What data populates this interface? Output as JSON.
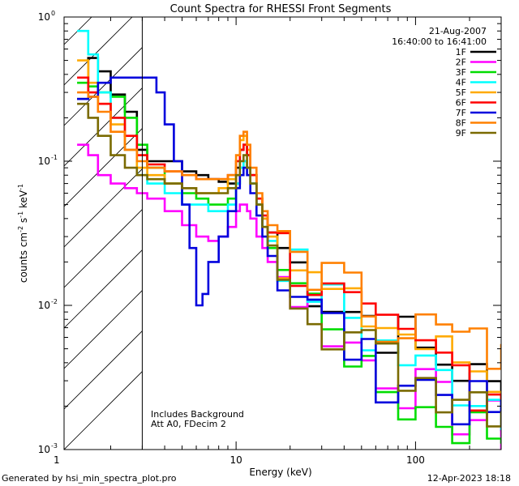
{
  "chart_data": {
    "type": "line",
    "title": "Count Spectra for RHESSI Front Segments",
    "xlabel": "Energy (keV)",
    "ylabel_parts": [
      "counts cm",
      "-2",
      " s",
      "-1",
      " keV",
      "-1"
    ],
    "xscale": "log",
    "yscale": "log",
    "xlim": [
      1.1,
      300
    ],
    "ylim": [
      0.001,
      1
    ],
    "x_ticks": [
      {
        "value": 1,
        "label": "1"
      },
      {
        "value": 10,
        "label": "10"
      },
      {
        "value": 100,
        "label": "100"
      }
    ],
    "y_ticks": [
      {
        "value": 1,
        "base": "10",
        "exp": "0"
      },
      {
        "value": 0.1,
        "base": "10",
        "exp": "-1"
      },
      {
        "value": 0.01,
        "base": "10",
        "exp": "-2"
      },
      {
        "value": 0.001,
        "base": "10",
        "exp": "-3"
      }
    ],
    "annotations": {
      "date": "21-Aug-2007",
      "time_range": "16:40:00 to 16:41:00",
      "note_line1": "Includes Background",
      "note_line2": "Att A0, FDecim 2"
    },
    "shaded_region": {
      "x_min": 1.1,
      "x_max": 3.0,
      "style": "diagonal hatch"
    },
    "series": [
      {
        "name": "1F",
        "color": "#000000",
        "x": [
          1.3,
          1.5,
          1.7,
          2.0,
          2.4,
          2.8,
          3.2,
          4,
          5,
          6,
          7,
          8,
          9,
          10,
          10.5,
          11,
          11.5,
          12,
          13,
          14,
          15,
          17,
          20,
          25,
          30,
          40,
          50,
          60,
          80,
          100,
          130,
          160,
          200,
          250,
          300
        ],
        "y": [
          0.27,
          0.52,
          0.42,
          0.29,
          0.22,
          0.12,
          0.1,
          0.1,
          0.085,
          0.08,
          0.075,
          0.072,
          0.07,
          0.09,
          0.12,
          0.13,
          0.11,
          0.08,
          0.05,
          0.04,
          0.032,
          0.024,
          0.018,
          0.014,
          0.011,
          0.009,
          0.008,
          0.007,
          0.006,
          0.0045,
          0.004,
          0.0035,
          0.003,
          0.0025,
          0.002
        ]
      },
      {
        "name": "2F",
        "color": "#ff00ff",
        "x": [
          1.3,
          1.5,
          1.7,
          2.0,
          2.4,
          2.8,
          3.2,
          4,
          5,
          6,
          7,
          8,
          9,
          10,
          10.5,
          11,
          11.5,
          12,
          13,
          14,
          15,
          17,
          20,
          25,
          30,
          40,
          50,
          60,
          80,
          100,
          130,
          160,
          200,
          250,
          300
        ],
        "y": [
          0.13,
          0.11,
          0.08,
          0.07,
          0.065,
          0.06,
          0.055,
          0.045,
          0.036,
          0.03,
          0.028,
          0.03,
          0.035,
          0.045,
          0.05,
          0.05,
          0.045,
          0.04,
          0.03,
          0.025,
          0.02,
          0.015,
          0.012,
          0.009,
          0.007,
          0.005,
          0.004,
          0.0035,
          0.003,
          0.0025,
          0.002,
          0.0018,
          0.0016,
          0.0015,
          0.0013
        ]
      },
      {
        "name": "3F",
        "color": "#00dd00",
        "x": [
          1.3,
          1.5,
          1.7,
          2.0,
          2.4,
          2.8,
          3.2,
          4,
          5,
          6,
          7,
          8,
          9,
          10,
          10.5,
          11,
          11.5,
          12,
          13,
          14,
          15,
          17,
          20,
          25,
          30,
          40,
          50,
          60,
          80,
          100,
          130,
          160,
          200,
          250,
          300
        ],
        "y": [
          0.35,
          0.33,
          0.3,
          0.28,
          0.2,
          0.13,
          0.09,
          0.07,
          0.06,
          0.055,
          0.05,
          0.05,
          0.055,
          0.07,
          0.09,
          0.1,
          0.09,
          0.07,
          0.05,
          0.035,
          0.025,
          0.018,
          0.013,
          0.01,
          0.008,
          0.005,
          0.003,
          0.0025,
          0.002,
          0.0018,
          0.0016,
          0.0015,
          0.0014,
          0.0013,
          0.0012
        ]
      },
      {
        "name": "4F",
        "color": "#00ffff",
        "x": [
          1.3,
          1.5,
          1.7,
          2.0,
          2.4,
          2.8,
          3.2,
          4,
          5,
          6,
          7,
          8,
          9,
          10,
          10.5,
          11,
          11.5,
          12,
          13,
          14,
          15,
          17,
          20,
          25,
          30,
          40,
          50,
          60,
          80,
          100,
          130,
          160,
          200,
          250,
          300
        ],
        "y": [
          0.8,
          0.55,
          0.3,
          0.2,
          0.12,
          0.08,
          0.07,
          0.06,
          0.05,
          0.05,
          0.045,
          0.045,
          0.05,
          0.07,
          0.09,
          0.1,
          0.09,
          0.07,
          0.05,
          0.035,
          0.028,
          0.022,
          0.017,
          0.013,
          0.01,
          0.008,
          0.006,
          0.005,
          0.004,
          0.0035,
          0.003,
          0.0028,
          0.0025,
          0.0022,
          0.002
        ]
      },
      {
        "name": "5F",
        "color": "#ffaa00",
        "x": [
          1.3,
          1.5,
          1.7,
          2.0,
          2.4,
          2.8,
          3.2,
          4,
          5,
          6,
          7,
          8,
          9,
          10,
          10.5,
          11,
          11.5,
          12,
          13,
          14,
          15,
          17,
          20,
          25,
          30,
          40,
          50,
          60,
          80,
          100,
          130,
          160,
          200,
          250,
          300
        ],
        "y": [
          0.5,
          0.35,
          0.25,
          0.18,
          0.12,
          0.09,
          0.08,
          0.07,
          0.065,
          0.06,
          0.06,
          0.065,
          0.075,
          0.1,
          0.14,
          0.15,
          0.12,
          0.08,
          0.055,
          0.04,
          0.03,
          0.024,
          0.018,
          0.014,
          0.011,
          0.009,
          0.008,
          0.007,
          0.006,
          0.005,
          0.0045,
          0.004,
          0.0035,
          0.003,
          0.0028
        ]
      },
      {
        "name": "6F",
        "color": "#ff0000",
        "x": [
          1.3,
          1.5,
          1.7,
          2.0,
          2.4,
          2.8,
          3.2,
          4,
          5,
          6,
          7,
          8,
          9,
          10,
          10.5,
          11,
          11.5,
          12,
          13,
          14,
          15,
          17,
          20,
          25,
          30,
          40,
          50,
          60,
          80,
          100,
          130,
          160,
          200,
          250,
          300
        ],
        "y": [
          0.38,
          0.3,
          0.25,
          0.2,
          0.15,
          0.11,
          0.095,
          0.085,
          0.08,
          0.075,
          0.075,
          0.075,
          0.08,
          0.1,
          0.12,
          0.13,
          0.11,
          0.08,
          0.055,
          0.042,
          0.032,
          0.025,
          0.019,
          0.014,
          0.011,
          0.009,
          0.007,
          0.006,
          0.005,
          0.0045,
          0.004,
          0.0035,
          0.003,
          0.0027,
          0.0024
        ]
      },
      {
        "name": "7F",
        "color": "#0000dd",
        "x": [
          1.3,
          1.5,
          1.7,
          2.0,
          2.4,
          2.8,
          3.2,
          3.6,
          4,
          4.5,
          5,
          5.5,
          6,
          6.5,
          7,
          8,
          9,
          10,
          10.5,
          11,
          11.5,
          12,
          13,
          14,
          15,
          17,
          20,
          25,
          30,
          40,
          50,
          60,
          80,
          100,
          130,
          160,
          200,
          250,
          300
        ],
        "y": [
          0.27,
          0.28,
          0.35,
          0.38,
          0.38,
          0.38,
          0.38,
          0.3,
          0.18,
          0.1,
          0.05,
          0.025,
          0.01,
          0.012,
          0.02,
          0.03,
          0.045,
          0.065,
          0.08,
          0.09,
          0.08,
          0.06,
          0.042,
          0.03,
          0.022,
          0.016,
          0.012,
          0.009,
          0.007,
          0.005,
          0.004,
          0.0035,
          0.003,
          0.0027,
          0.0024,
          0.0022,
          0.002,
          0.0018,
          0.0016
        ]
      },
      {
        "name": "8F",
        "color": "#ff8000",
        "x": [
          1.3,
          1.5,
          1.7,
          2.0,
          2.4,
          2.8,
          3.2,
          4,
          5,
          6,
          7,
          8,
          9,
          10,
          10.5,
          11,
          11.5,
          12,
          13,
          14,
          15,
          17,
          20,
          25,
          30,
          40,
          50,
          60,
          80,
          100,
          130,
          160,
          200,
          250,
          300
        ],
        "y": [
          0.3,
          0.28,
          0.22,
          0.16,
          0.12,
          0.1,
          0.09,
          0.085,
          0.08,
          0.075,
          0.075,
          0.075,
          0.08,
          0.11,
          0.15,
          0.16,
          0.13,
          0.09,
          0.06,
          0.045,
          0.036,
          0.029,
          0.023,
          0.018,
          0.015,
          0.012,
          0.01,
          0.009,
          0.008,
          0.007,
          0.006,
          0.0055,
          0.005,
          0.0045,
          0.004
        ]
      },
      {
        "name": "9F",
        "color": "#7a6a00",
        "x": [
          1.3,
          1.5,
          1.7,
          2.0,
          2.4,
          2.8,
          3.2,
          4,
          5,
          6,
          7,
          8,
          9,
          10,
          10.5,
          11,
          11.5,
          12,
          13,
          14,
          15,
          17,
          20,
          25,
          30,
          40,
          50,
          60,
          80,
          100,
          130,
          160,
          200,
          250,
          300
        ],
        "y": [
          0.25,
          0.2,
          0.15,
          0.11,
          0.09,
          0.08,
          0.075,
          0.07,
          0.065,
          0.06,
          0.06,
          0.06,
          0.065,
          0.08,
          0.1,
          0.11,
          0.09,
          0.07,
          0.05,
          0.035,
          0.026,
          0.02,
          0.015,
          0.011,
          0.008,
          0.006,
          0.005,
          0.004,
          0.0035,
          0.003,
          0.0028,
          0.0026,
          0.0024,
          0.0022,
          0.002
        ]
      }
    ]
  },
  "footer": {
    "generated_by": "Generated by hsi_min_spectra_plot.pro",
    "timestamp": "12-Apr-2023 18:18"
  }
}
